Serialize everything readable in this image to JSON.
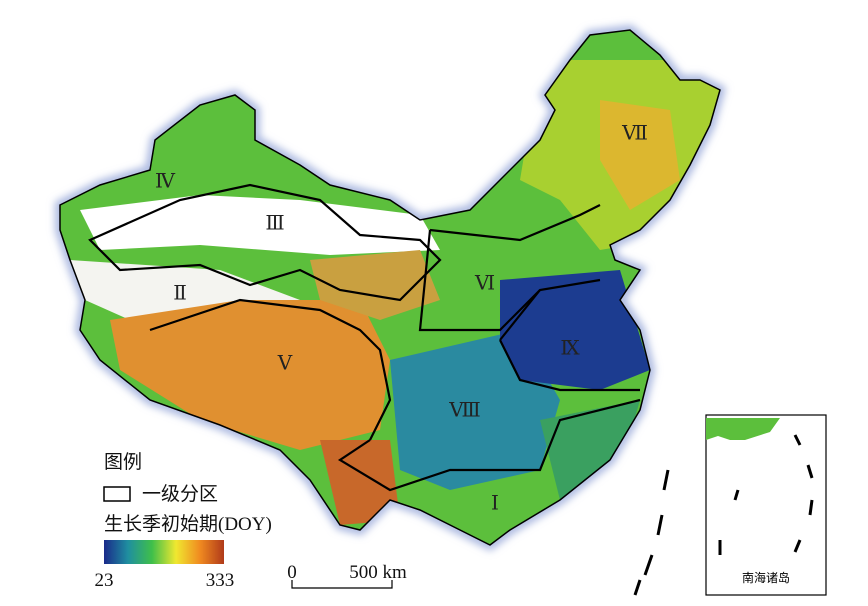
{
  "regions": [
    {
      "label": "Ⅰ"
    },
    {
      "label": "Ⅱ"
    },
    {
      "label": "Ⅲ"
    },
    {
      "label": "Ⅳ"
    },
    {
      "label": "Ⅴ"
    },
    {
      "label": "Ⅵ"
    },
    {
      "label": "Ⅶ"
    },
    {
      "label": "Ⅷ"
    },
    {
      "label": "Ⅸ"
    }
  ],
  "legend": {
    "title": "图例",
    "boundary": "一级分区",
    "colorbar": {
      "title": "生长季初始期(DOY)",
      "min": 23,
      "max": 333,
      "colors": [
        "#1a2a8a",
        "#1f8fa0",
        "#3fbf4a",
        "#f0e830",
        "#f08a20",
        "#b03a1a"
      ]
    }
  },
  "scale_bar": {
    "start": "0",
    "end": "500 km"
  },
  "inset": {
    "label": "南海诸岛"
  }
}
